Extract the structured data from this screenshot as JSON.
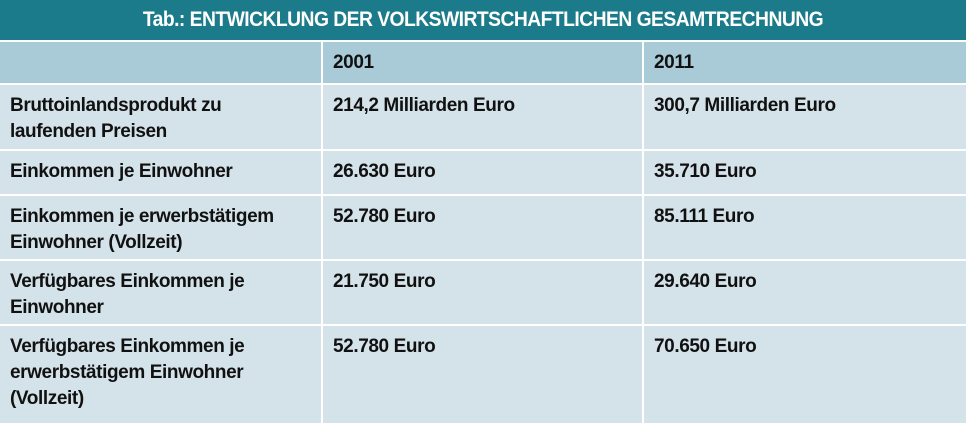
{
  "table": {
    "title": "Tab.: ENTWICKLUNG DER VOLKSWIRTSCHAFTLICHEN GESAMTRECHNUNG",
    "header": [
      "",
      "2001",
      "2011"
    ],
    "rows": [
      [
        "Bruttoinlandsprodukt zu\nlaufenden Preisen",
        "214,2 Milliarden Euro",
        "300,7 Milliarden Euro"
      ],
      [
        "Einkommen je Einwohner",
        "26.630 Euro",
        "35.710 Euro"
      ],
      [
        "Einkommen je erwerbstätigem\nEinwohner (Vollzeit)",
        "52.780 Euro",
        "85.111 Euro"
      ],
      [
        "Verfügbares Einkommen je\nEinwohner",
        "21.750 Euro",
        "29.640 Euro"
      ],
      [
        "Verfügbares Einkommen je\nerwerbstätigem Einwohner\n(Vollzeit)",
        "52.780 Euro",
        "70.650 Euro"
      ]
    ]
  }
}
